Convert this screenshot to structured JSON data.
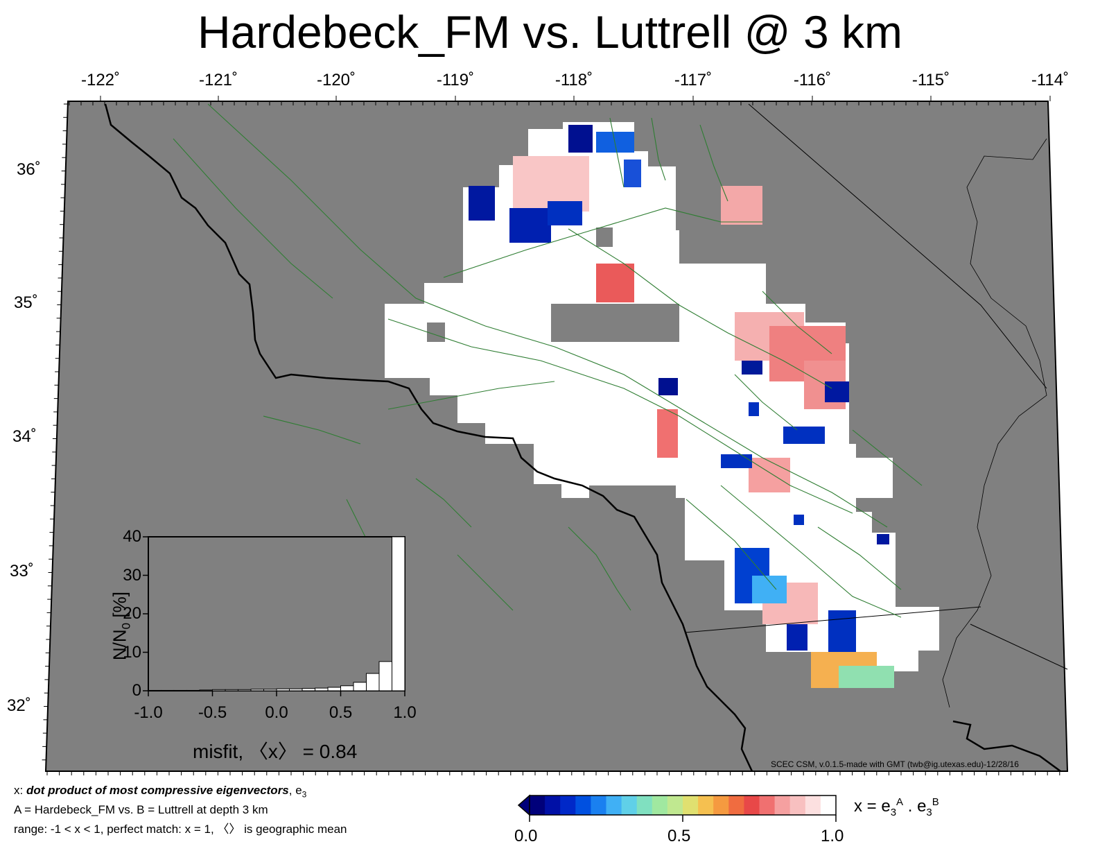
{
  "title": "Hardebeck_FM vs. Luttrell @ 3 km",
  "longitude_labels": [
    "-122˚",
    "-121˚",
    "-120˚",
    "-119˚",
    "-118˚",
    "-117˚",
    "-116˚",
    "-115˚",
    "-114˚"
  ],
  "latitude_labels": [
    "36˚",
    "35˚",
    "34˚",
    "33˚",
    "32˚"
  ],
  "credit": "SCEC CSM, v.0.1.5-made with GMT (twb@ig.utexas.edu)-12/28/16",
  "notes": {
    "line1_prefix": "x: ",
    "line1_em": "dot product of most compressive eigenvectors",
    "line1_suffix": ", e",
    "line1_sub": "3",
    "line2": "A = Hardebeck_FM vs.  B = Luttrell at depth 3 km",
    "line3": "range: -1 < x < 1, perfect match: x = 1, 〈〉 is geographic mean"
  },
  "colorbar": {
    "tick_labels": [
      "0.0",
      "0.5",
      "1.0"
    ],
    "label_x": "x = e",
    "label_sub": "3",
    "label_supA": "A",
    "label_mid": " . e",
    "label_supB": "B",
    "colors": [
      "#00007a",
      "#0010a6",
      "#0028c8",
      "#0050e0",
      "#1a80f0",
      "#40b0f5",
      "#60d0e8",
      "#80e0c0",
      "#a0e8a0",
      "#c0e890",
      "#e0e070",
      "#f5c050",
      "#f59a40",
      "#f06c40",
      "#e84848",
      "#f07070",
      "#f5a0a0",
      "#f8c0c0",
      "#fce0e0",
      "#ffffff"
    ]
  },
  "histogram": {
    "ylabel": "N/N",
    "ylabel_sub": "0",
    "ylabel_suffix": " [%]",
    "xlabel": "misfit, 〈x〉 = 0.84",
    "y_ticks": [
      "40",
      "30",
      "20",
      "10",
      "0"
    ],
    "x_ticks": [
      "-1.0",
      "-0.5",
      "0.0",
      "0.5",
      "1.0"
    ]
  },
  "chart_data": {
    "type": "bar",
    "title": "",
    "xlabel": "misfit, 〈x〉 = 0.84",
    "ylabel": "N/N0 [%]",
    "xlim": [
      -1.0,
      1.0
    ],
    "ylim": [
      0,
      40
    ],
    "bin_width": 0.1,
    "bin_centers": [
      -0.95,
      -0.85,
      -0.75,
      -0.65,
      -0.55,
      -0.45,
      -0.35,
      -0.25,
      -0.15,
      -0.05,
      0.05,
      0.15,
      0.25,
      0.35,
      0.45,
      0.55,
      0.65,
      0.75,
      0.85,
      0.95
    ],
    "values": [
      0.1,
      0.1,
      0.1,
      0.1,
      0.2,
      0.3,
      0.3,
      0.3,
      0.4,
      0.4,
      0.5,
      0.5,
      0.6,
      0.7,
      0.9,
      1.3,
      2.2,
      4.5,
      7.6,
      40.0
    ],
    "mean": 0.84
  }
}
